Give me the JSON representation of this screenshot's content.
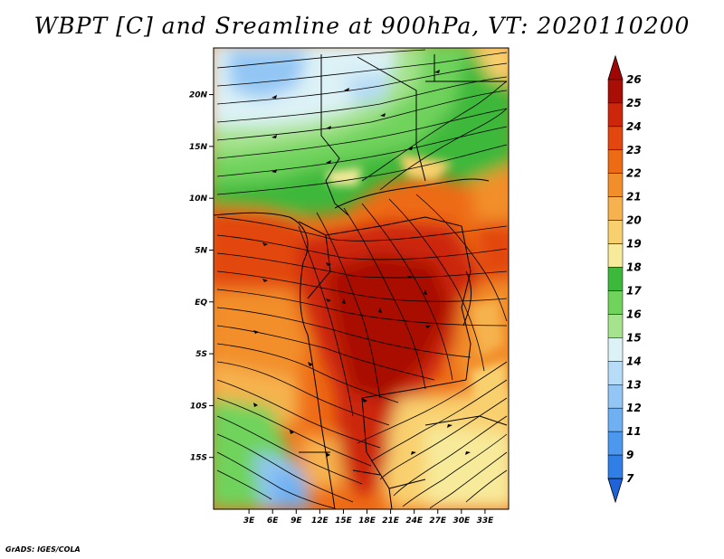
{
  "title": "WBPT [C] and Sreamline at 900hPa, VT: 2020110200",
  "credit": "GrADS: IGES/COLA",
  "map": {
    "lon_range": [
      -1.5,
      36
    ],
    "lat_range": [
      -20,
      24.5
    ],
    "lat_labels": [
      {
        "value": 20,
        "label": "20N"
      },
      {
        "value": 15,
        "label": "15N"
      },
      {
        "value": 10,
        "label": "10N"
      },
      {
        "value": 5,
        "label": "5N"
      },
      {
        "value": 0,
        "label": "EQ"
      },
      {
        "value": -5,
        "label": "5S"
      },
      {
        "value": -10,
        "label": "10S"
      },
      {
        "value": -15,
        "label": "15S"
      }
    ],
    "lon_labels": [
      {
        "value": 3,
        "label": "3E"
      },
      {
        "value": 6,
        "label": "6E"
      },
      {
        "value": 9,
        "label": "9E"
      },
      {
        "value": 12,
        "label": "12E"
      },
      {
        "value": 15,
        "label": "15E"
      },
      {
        "value": 18,
        "label": "18E"
      },
      {
        "value": 21,
        "label": "21E"
      },
      {
        "value": 24,
        "label": "24E"
      },
      {
        "value": 27,
        "label": "27E"
      },
      {
        "value": 30,
        "label": "30E"
      },
      {
        "value": 33,
        "label": "33E"
      }
    ]
  },
  "colorbar": {
    "levels": [
      "7",
      "9",
      "11",
      "12",
      "13",
      "14",
      "15",
      "16",
      "17",
      "18",
      "19",
      "20",
      "21",
      "22",
      "23",
      "24",
      "25",
      "26"
    ],
    "colors": [
      "#1f63d8",
      "#2f7fe6",
      "#4b98ee",
      "#6fb0f2",
      "#93c6f4",
      "#b7dcf7",
      "#ddf2f6",
      "#a6e38d",
      "#6fd35c",
      "#3cb83a",
      "#f7ea9a",
      "#f9d06e",
      "#f6b24e",
      "#f28f2a",
      "#ee6b16",
      "#e2470f",
      "#cc270b",
      "#a80e06",
      "#a00606"
    ]
  }
}
